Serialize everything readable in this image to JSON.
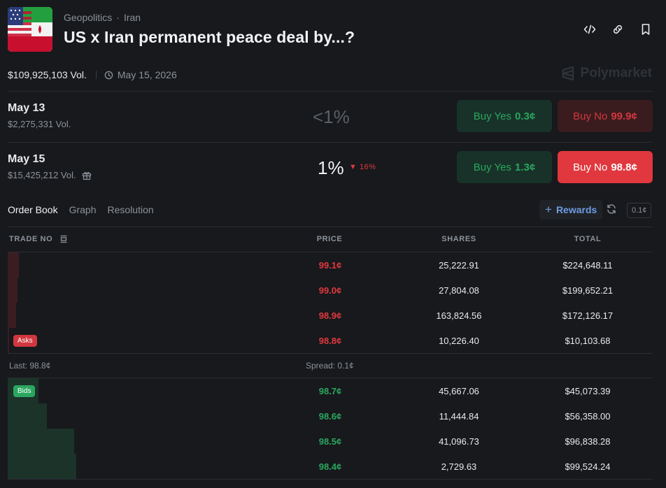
{
  "market": {
    "breadcrumb": [
      "Geopolitics",
      "Iran"
    ],
    "breadcrumb_sep": "·",
    "title": "US x Iran permanent peace deal by...?",
    "volume": "$109,925,103 Vol.",
    "end_date": "May 15, 2026",
    "brand": "Polymarket"
  },
  "header_icons": [
    "embed-code-icon",
    "link-icon",
    "bookmark-icon"
  ],
  "outcomes": [
    {
      "title": "May 13",
      "volume": "$2,275,331 Vol.",
      "probability": "<1%",
      "change": "",
      "yes_label": "Buy Yes",
      "yes_price": "0.3¢",
      "no_label": "Buy No",
      "no_price": "99.9¢"
    },
    {
      "title": "May 15",
      "volume": "$15,425,212 Vol.",
      "probability": "1%",
      "change": "▼ 16%",
      "yes_label": "Buy Yes",
      "yes_price": "1.3¢",
      "no_label": "Buy No",
      "no_price": "98.8¢"
    }
  ],
  "tabs": [
    {
      "label": "Order Book",
      "active": true
    },
    {
      "label": "Graph",
      "active": false
    },
    {
      "label": "Resolution",
      "active": false
    }
  ],
  "rewards_label": "Rewards",
  "tick_size": "0.1¢",
  "order_book": {
    "headers": {
      "trade": "TRADE NO",
      "price": "PRICE",
      "shares": "SHARES",
      "total": "TOTAL"
    },
    "asks_label": "Asks",
    "bids_label": "Bids",
    "asks": [
      {
        "price": "99.1¢",
        "shares": "25,222.91",
        "total": "$224,648.11",
        "depth": 1.0
      },
      {
        "price": "99.0¢",
        "shares": "27,804.08",
        "total": "$199,652.21",
        "depth": 0.89
      },
      {
        "price": "98.9¢",
        "shares": "163,824.56",
        "total": "$172,126.17",
        "depth": 0.77
      },
      {
        "price": "98.8¢",
        "shares": "10,226.40",
        "total": "$10,103.68",
        "depth": 0.05
      }
    ],
    "last": "Last: 98.8¢",
    "spread": "Spread: 0.1¢",
    "bids": [
      {
        "price": "98.7¢",
        "shares": "45,667.06",
        "total": "$45,073.39",
        "depth": 0.45
      },
      {
        "price": "98.6¢",
        "shares": "11,444.84",
        "total": "$56,358.00",
        "depth": 0.57
      },
      {
        "price": "98.5¢",
        "shares": "41,096.73",
        "total": "$96,838.28",
        "depth": 0.97
      },
      {
        "price": "98.4¢",
        "shares": "2,729.63",
        "total": "$99,524.24",
        "depth": 1.0
      }
    ]
  },
  "colors": {
    "ask": "#e0383e",
    "bid": "#2aa65f",
    "background": "#17191c"
  }
}
